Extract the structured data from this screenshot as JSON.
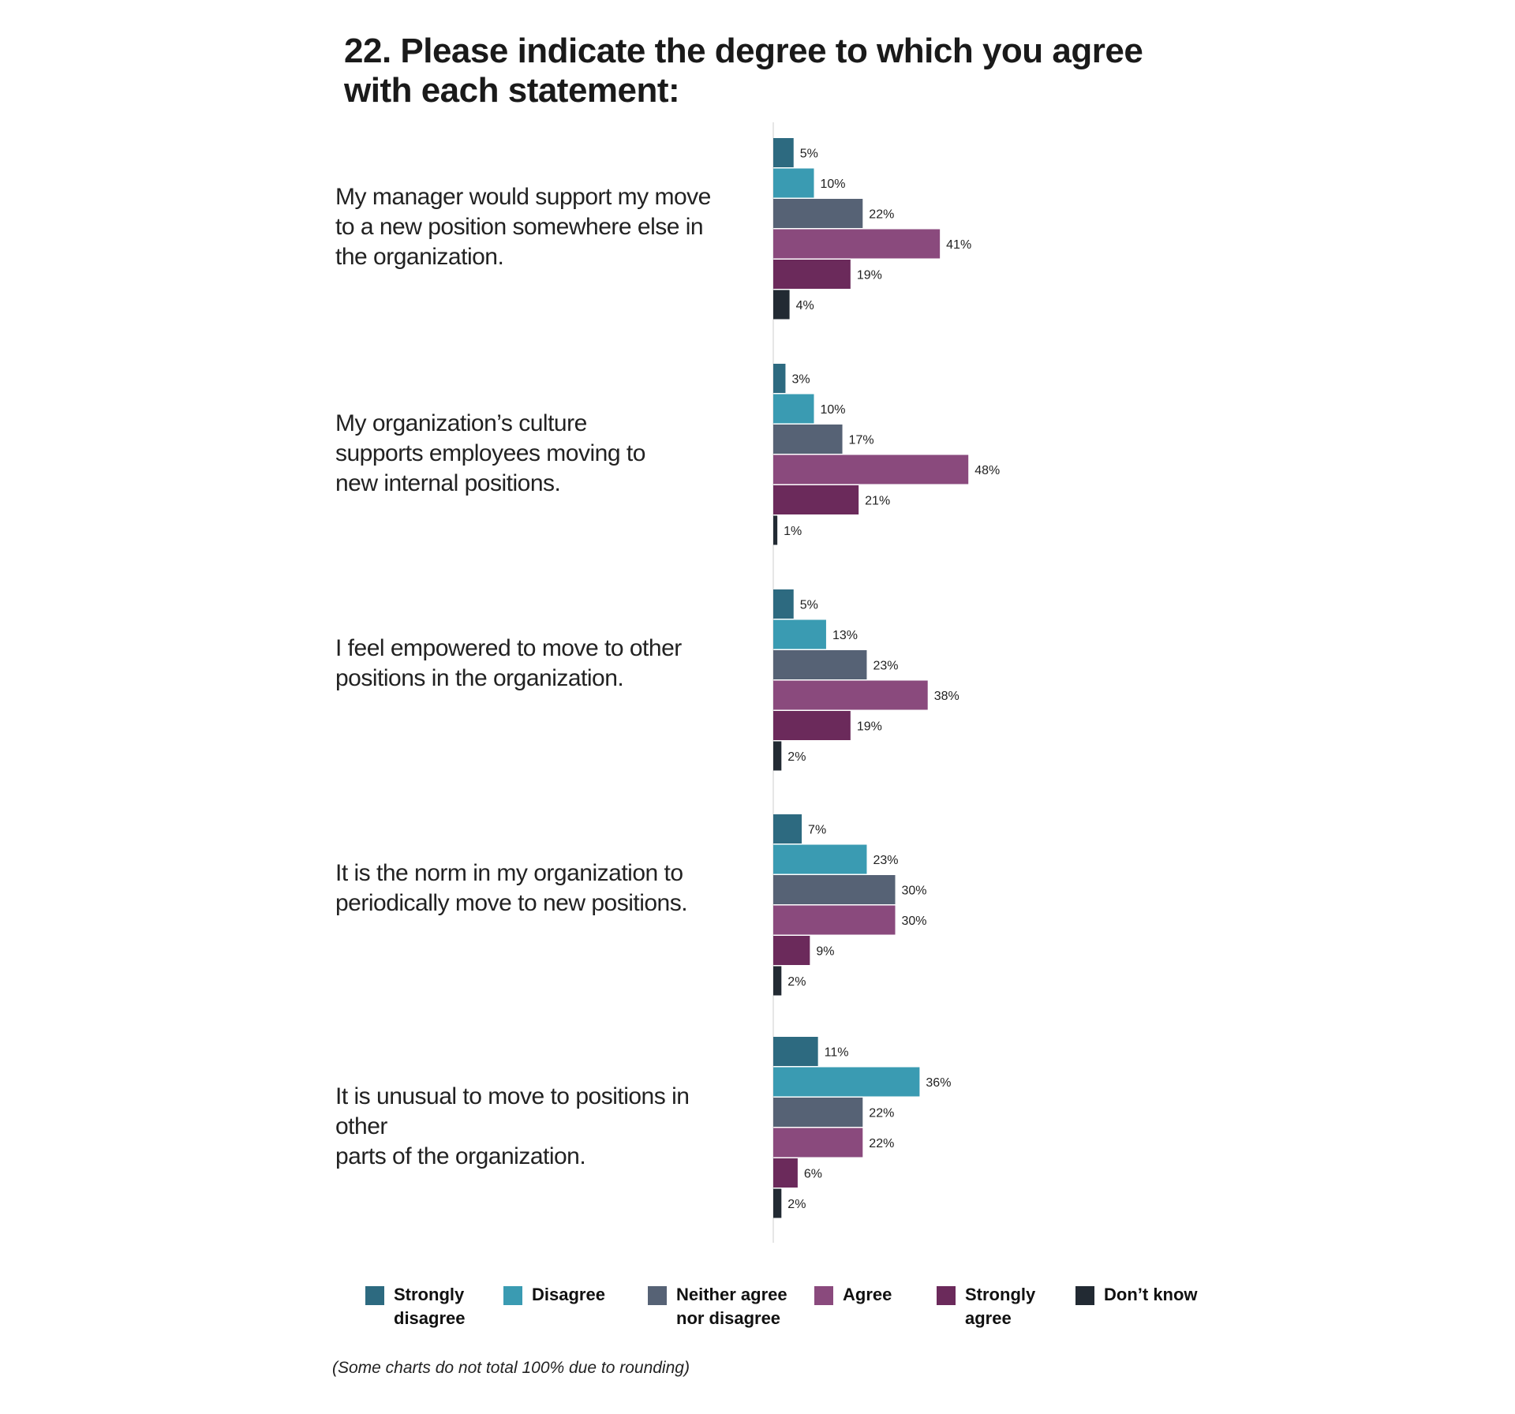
{
  "title": "22. Please indicate the degree to which you agree with each statement:",
  "footnote": "(Some charts do not total 100% due to rounding)",
  "colors": {
    "strongly_disagree": "#2d6a80",
    "disagree": "#3a9bb2",
    "neither": "#566275",
    "agree": "#8a4a7d",
    "strongly_agree": "#6b2a5b",
    "dont_know": "#222a33",
    "axis_line": "#dddddd"
  },
  "chart_data": {
    "type": "bar",
    "orientation": "horizontal",
    "categories": [
      "My manager would support my move to a new position somewhere else in the organization.",
      "My organization’s culture supports employees moving to new internal positions.",
      "I feel empowered to move to other positions in the organization.",
      "It is the norm in my organization to periodically move to new positions.",
      "It is unusual to move to positions in other parts of the organization."
    ],
    "series": [
      {
        "name": "Strongly disagree",
        "color": "#2d6a80",
        "values": [
          5,
          3,
          5,
          7,
          11
        ]
      },
      {
        "name": "Disagree",
        "color": "#3a9bb2",
        "values": [
          10,
          10,
          13,
          23,
          36
        ]
      },
      {
        "name": "Neither agree nor disagree",
        "color": "#566275",
        "values": [
          22,
          17,
          23,
          30,
          22
        ]
      },
      {
        "name": "Agree",
        "color": "#8a4a7d",
        "values": [
          41,
          48,
          38,
          30,
          22
        ]
      },
      {
        "name": "Strongly agree",
        "color": "#6b2a5b",
        "values": [
          19,
          21,
          19,
          9,
          6
        ]
      },
      {
        "name": "Don’t know",
        "color": "#222a33",
        "values": [
          4,
          1,
          2,
          2,
          2
        ]
      }
    ],
    "value_suffix": "%",
    "legend_position": "bottom",
    "grid": false
  },
  "statements": [
    {
      "lines": [
        "My manager would support my move",
        "to a new position somewhere else in",
        "the organization."
      ]
    },
    {
      "lines": [
        "My organization’s culture",
        "supports employees moving to",
        "new internal positions."
      ]
    },
    {
      "lines": [
        "I feel empowered to move to other",
        "positions in the organization."
      ]
    },
    {
      "lines": [
        "It is the norm in my organization to",
        "periodically move to new positions."
      ]
    },
    {
      "lines": [
        "It is unusual to move to positions in other",
        "parts of the organization."
      ]
    }
  ],
  "legend": [
    {
      "label_lines": [
        "Strongly",
        "disagree"
      ],
      "color": "#2d6a80"
    },
    {
      "label_lines": [
        "Disagree"
      ],
      "color": "#3a9bb2"
    },
    {
      "label_lines": [
        "Neither agree",
        "nor disagree"
      ],
      "color": "#566275"
    },
    {
      "label_lines": [
        "Agree"
      ],
      "color": "#8a4a7d"
    },
    {
      "label_lines": [
        "Strongly",
        "agree"
      ],
      "color": "#6b2a5b"
    },
    {
      "label_lines": [
        "Don’t know"
      ],
      "color": "#222a33"
    }
  ]
}
